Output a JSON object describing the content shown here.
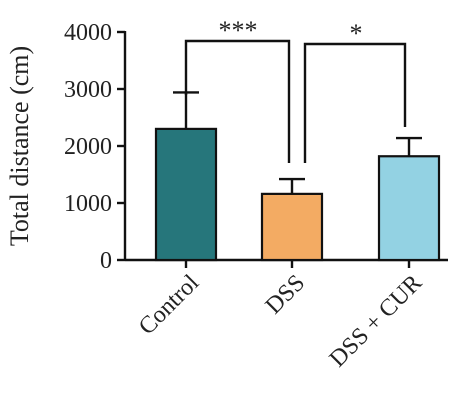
{
  "chart_data": {
    "type": "bar",
    "categories": [
      "Control",
      "DSS",
      "DSS + CUR"
    ],
    "values": [
      2300,
      1160,
      1820
    ],
    "errors": [
      640,
      260,
      320
    ],
    "colors": [
      "#26767b",
      "#f3ab63",
      "#93d2e3"
    ],
    "title": "",
    "xlabel": "",
    "ylabel": "Total distance (cm)",
    "ylim": [
      0,
      4000
    ],
    "yticks": [
      0,
      1000,
      2000,
      3000,
      4000
    ],
    "grid": false,
    "legend": "none",
    "significance": [
      {
        "from": 0,
        "to": 1,
        "label": "***"
      },
      {
        "from": 1,
        "to": 2,
        "label": "*"
      }
    ]
  }
}
